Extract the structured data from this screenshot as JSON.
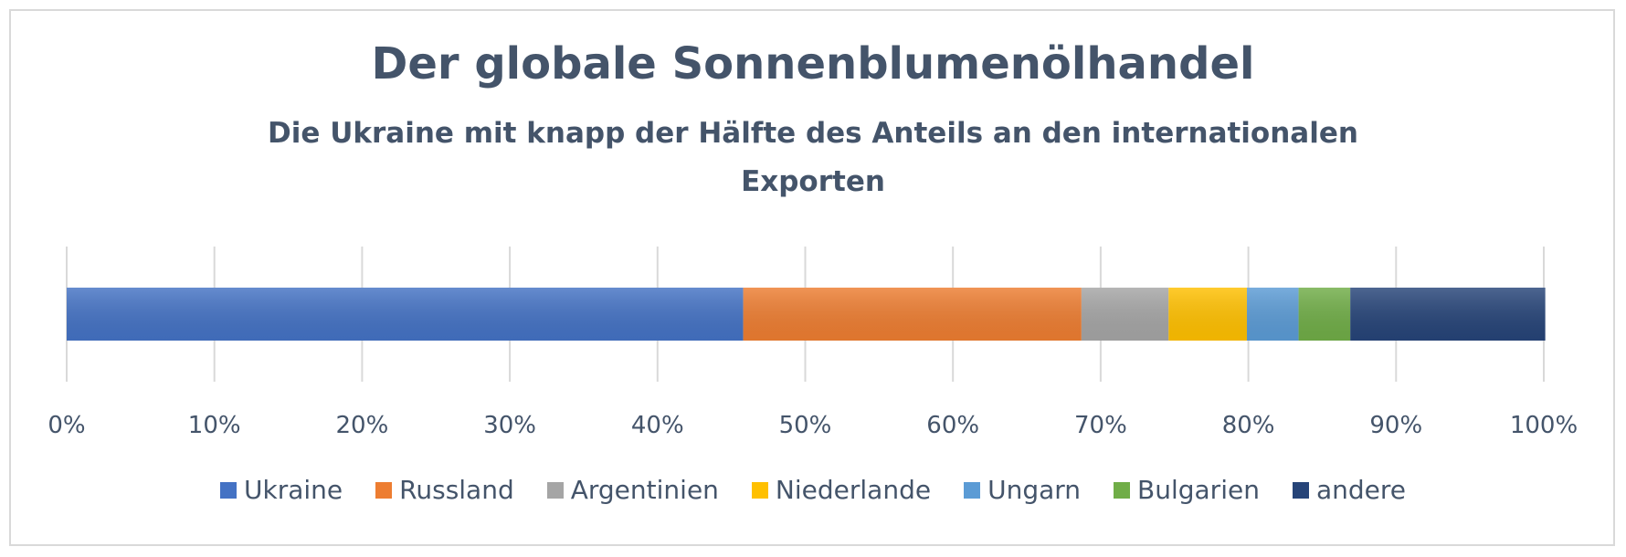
{
  "chart_data": {
    "type": "bar",
    "orientation": "horizontal",
    "stacked": true,
    "title": "Der globale Sonnenblumenölhandel",
    "subtitle_line1": "Die Ukraine mit knapp der Hälfte des Anteils an den internationalen",
    "subtitle_line2": "Exporten",
    "xlim": [
      0,
      100
    ],
    "x_ticks": [
      "0%",
      "10%",
      "20%",
      "30%",
      "40%",
      "50%",
      "60%",
      "70%",
      "80%",
      "90%",
      "100%"
    ],
    "grid": true,
    "legend_position": "bottom",
    "series": [
      {
        "name": "Ukraine",
        "value": 45.8,
        "color": "#4472c4"
      },
      {
        "name": "Russland",
        "value": 22.9,
        "color": "#ed7d31"
      },
      {
        "name": "Argentinien",
        "value": 5.9,
        "color": "#a5a5a5"
      },
      {
        "name": "Niederlande",
        "value": 5.3,
        "color": "#ffc000"
      },
      {
        "name": "Ungarn",
        "value": 3.5,
        "color": "#5b9bd5"
      },
      {
        "name": "Bulgarien",
        "value": 3.5,
        "color": "#70ad47"
      },
      {
        "name": "andere",
        "value": 13.2,
        "color": "#264478"
      }
    ]
  }
}
